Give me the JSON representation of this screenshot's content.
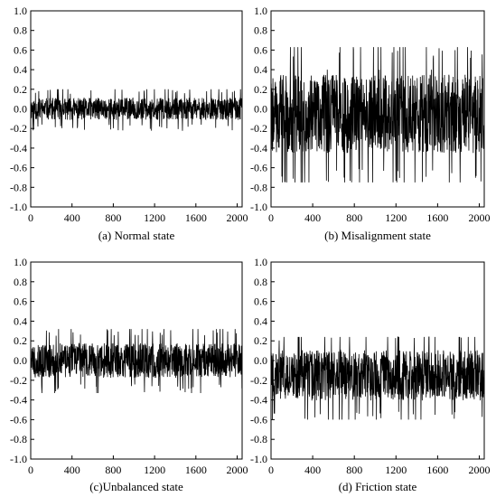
{
  "chart_data": [
    {
      "type": "line",
      "title": "(a) Normal state",
      "xlabel": "",
      "ylabel": "",
      "xlim": [
        0,
        2048
      ],
      "ylim": [
        -1.0,
        1.0
      ],
      "xticks": [
        0,
        400,
        800,
        1200,
        1600,
        2000
      ],
      "yticks": [
        1.0,
        0.8,
        0.6,
        0.4,
        0.2,
        0.0,
        -0.2,
        -0.4,
        -0.6,
        -0.8,
        -1.0
      ],
      "grid": false,
      "series": [
        {
          "x_start": 0,
          "x_step": 2,
          "count": 1024,
          "baseline": 0.0,
          "amplitude": 0.07,
          "min": -0.25,
          "max": 0.2,
          "periodic_peaks": [],
          "seed": 11,
          "color": "#000000"
        }
      ]
    },
    {
      "type": "line",
      "title": "(b) Misalignment state",
      "xlabel": "",
      "ylabel": "",
      "xlim": [
        0,
        2048
      ],
      "ylim": [
        -1.0,
        1.0
      ],
      "xticks": [
        0,
        400,
        800,
        1200,
        1600,
        2000
      ],
      "yticks": [
        1.0,
        0.8,
        0.6,
        0.4,
        0.2,
        0.0,
        -0.2,
        -0.4,
        -0.6,
        -0.8,
        -1.0
      ],
      "grid": false,
      "series": [
        {
          "x_start": 0,
          "x_step": 2,
          "count": 1024,
          "baseline": -0.05,
          "amplitude": 0.25,
          "min": -0.75,
          "max": 0.63,
          "periodic_peaks": [
            {
              "x": 40,
              "y": 0.25
            },
            {
              "x": 290,
              "y": 0.63
            },
            {
              "x": 540,
              "y": 0.4
            },
            {
              "x": 790,
              "y": 0.63
            },
            {
              "x": 1040,
              "y": 0.4
            },
            {
              "x": 1290,
              "y": 0.63
            },
            {
              "x": 1540,
              "y": 0.4
            },
            {
              "x": 1790,
              "y": 0.63
            },
            {
              "x": 2030,
              "y": 0.3
            }
          ],
          "seed": 22,
          "color": "#000000"
        }
      ]
    },
    {
      "type": "line",
      "title": "(c)Unbalanced state",
      "xlabel": "",
      "ylabel": "",
      "xlim": [
        0,
        2048
      ],
      "ylim": [
        -1.0,
        1.0
      ],
      "xticks": [
        0,
        400,
        800,
        1200,
        1600,
        2000
      ],
      "yticks": [
        1.0,
        0.8,
        0.6,
        0.4,
        0.2,
        0.0,
        -0.2,
        -0.4,
        -0.6,
        -0.8,
        -1.0
      ],
      "grid": false,
      "series": [
        {
          "x_start": 0,
          "x_step": 2,
          "count": 1024,
          "baseline": 0.0,
          "amplitude": 0.11,
          "min": -0.33,
          "max": 0.32,
          "periodic_peaks": [
            {
              "x": 270,
              "y": 0.32
            },
            {
              "x": 780,
              "y": 0.32
            },
            {
              "x": 1290,
              "y": 0.32
            },
            {
              "x": 1800,
              "y": 0.32
            }
          ],
          "seed": 33,
          "color": "#000000"
        }
      ]
    },
    {
      "type": "line",
      "title": "(d) Friction state",
      "xlabel": "",
      "ylabel": "",
      "xlim": [
        0,
        2048
      ],
      "ylim": [
        -1.0,
        1.0
      ],
      "xticks": [
        0,
        400,
        800,
        1200,
        1600,
        2000
      ],
      "yticks": [
        1.0,
        0.8,
        0.6,
        0.4,
        0.2,
        0.0,
        -0.2,
        -0.4,
        -0.6,
        -0.8,
        -1.0
      ],
      "grid": false,
      "series": [
        {
          "x_start": 0,
          "x_step": 2,
          "count": 1024,
          "baseline": -0.15,
          "amplitude": 0.16,
          "min": -0.6,
          "max": 0.24,
          "periodic_peaks": [],
          "seed": 44,
          "color": "#000000"
        }
      ]
    }
  ]
}
